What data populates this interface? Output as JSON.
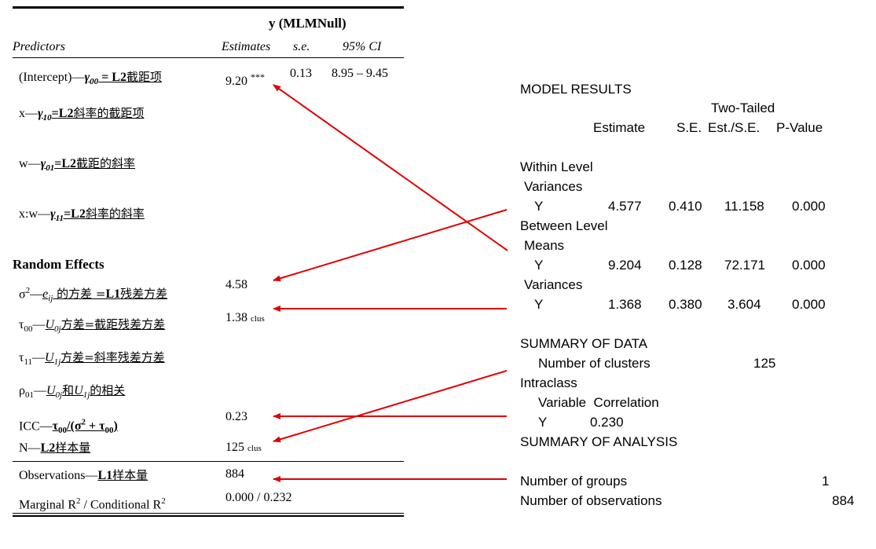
{
  "table": {
    "model_title": "y (MLMNull)",
    "headers": {
      "predictors": "Predictors",
      "estimates": "Estimates",
      "se": "s.e.",
      "ci": "95% CI"
    },
    "fixed": [
      {
        "pre": "(Intercept)—",
        "sym": "γ",
        "sub": "00",
        "post": " = L2",
        "cn": "截距项",
        "est": "9.20",
        "stars": "***",
        "se": "0.13",
        "ci": "8.95 – 9.45"
      },
      {
        "pre": "x—",
        "sym": "γ",
        "sub": "10",
        "post": "=L2",
        "cn": "斜率的截距项"
      },
      {
        "pre": "w—",
        "sym": "γ",
        "sub": "01",
        "post": "=L2",
        "cn": "截距的斜率"
      },
      {
        "pre": "x:w—",
        "sym": "γ",
        "sub": "11",
        "post": "=L2",
        "cn": "斜率的斜率"
      }
    ],
    "random_title": "Random Effects",
    "random": {
      "sigma": {
        "lead": "σ",
        "sup": "2",
        "dash": "—",
        "sym": "e",
        "sub": "ij",
        "cn1": " 的方差 =",
        "l1": "L1",
        "cn2": "残差方差",
        "value": "4.58"
      },
      "tau00": {
        "lead": "τ",
        "sub0": "00",
        "dash": "—",
        "sym": "U",
        "sub": "0j",
        "cn": "方差=截距残差方差",
        "value": "1.38",
        "unit": "clus"
      },
      "tau11": {
        "lead": "τ",
        "sub0": "11",
        "dash": "—",
        "sym": "U",
        "sub": "1j",
        "cn": "方差=斜率残差方差"
      },
      "rho01": {
        "lead": "ρ",
        "sub0": "01",
        "dash": "—",
        "sym1": "U",
        "sub1": "0j",
        "mid": "和",
        "sym2": "U",
        "sub2": "1j",
        "cn": "的相关"
      },
      "icc": {
        "lead": "ICC—",
        "t1": "τ",
        "t1sub": "00",
        "mid": "/(σ",
        "sup": "2",
        "plus": " + ",
        "t2": "τ",
        "t2sub": "00",
        "end": ")",
        "value": "0.23"
      },
      "n": {
        "lead": "N—",
        "l2": "L2",
        "cn": "样本量",
        "value": "125",
        "unit": "clus"
      }
    },
    "observations": {
      "lead": "Observations—",
      "l1": "L1",
      "cn": "样本量",
      "value": "884"
    },
    "r2": {
      "lead1": "Marginal R",
      "sup1": "2",
      "mid": " / Conditional R",
      "sup2": "2",
      "value": "0.000 / 0.232"
    }
  },
  "mplus": {
    "model_results": "MODEL RESULTS",
    "two_tailed": "Two-Tailed",
    "col_estimate": "Estimate",
    "col_se": "S.E.",
    "col_estse": "Est./S.E.",
    "col_p": "P-Value",
    "within_level": "Within Level",
    "within_variances": "Variances",
    "within_y": {
      "label": "Y",
      "est": "4.577",
      "se": "0.410",
      "estse": "11.158",
      "p": "0.000"
    },
    "between_level": "Between Level",
    "means": "Means",
    "means_y": {
      "label": "Y",
      "est": "9.204",
      "se": "0.128",
      "estse": "72.171",
      "p": "0.000"
    },
    "between_variances": "Variances",
    "var_y": {
      "label": "Y",
      "est": "1.368",
      "se": "0.380",
      "estse": "3.604",
      "p": "0.000"
    },
    "summary_data": "SUMMARY OF DATA",
    "num_clusters_label": "Number of clusters",
    "num_clusters": "125",
    "intraclass": "Intraclass",
    "variable_corr": "Variable  Correlation",
    "icc_y": {
      "label": "Y",
      "value": "0.230"
    },
    "summary_analysis": "SUMMARY OF ANALYSIS",
    "num_groups_label": "Number of groups",
    "num_groups": "1",
    "num_obs_label": "Number of observations",
    "num_obs": "884"
  },
  "arrow_color": "#e00000"
}
